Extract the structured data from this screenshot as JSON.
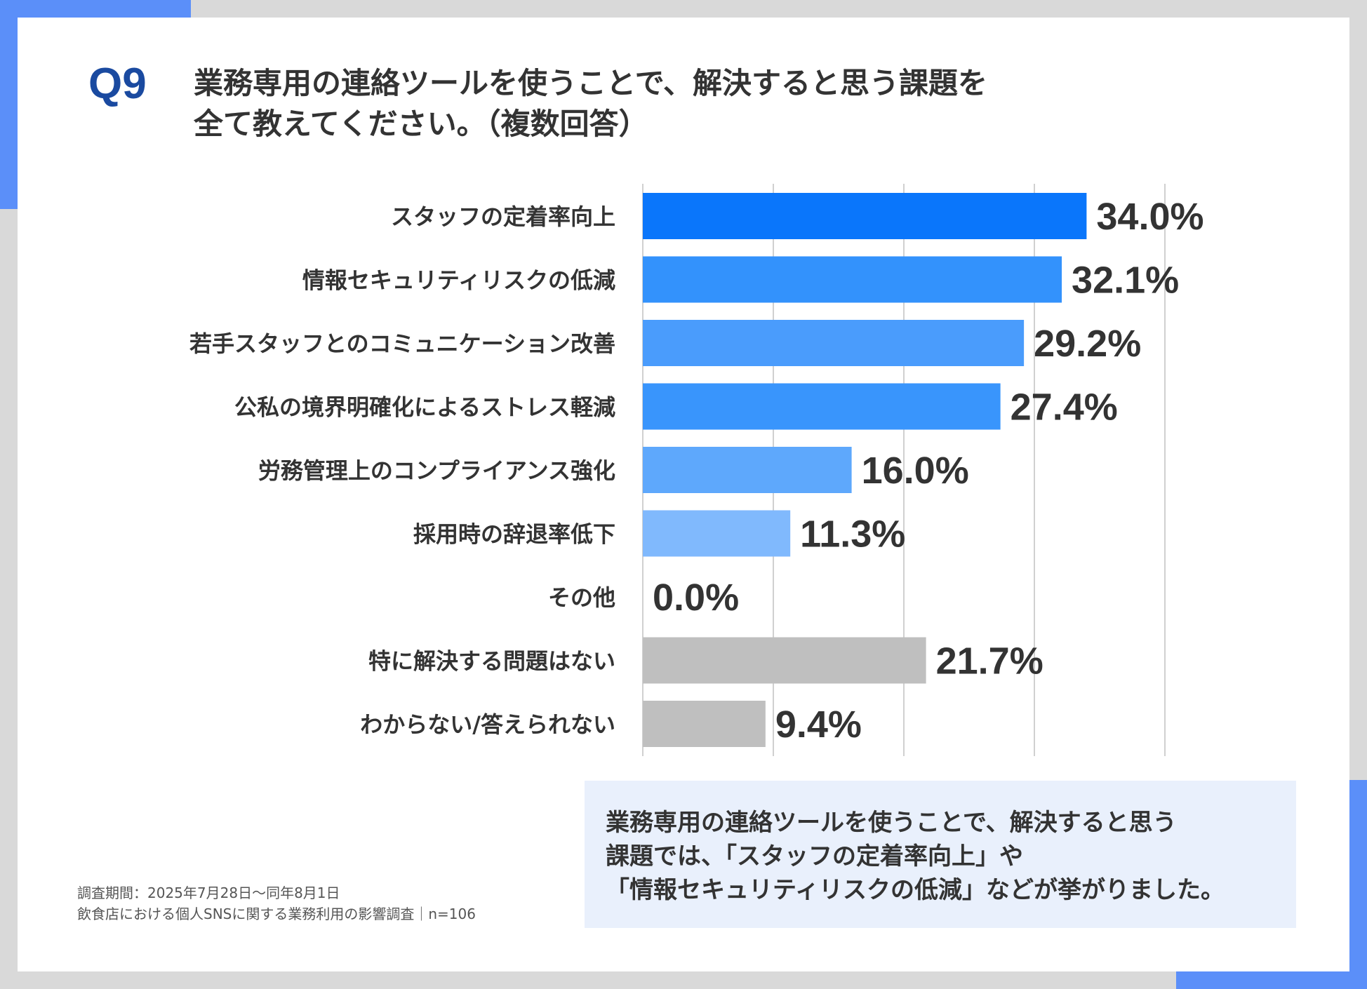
{
  "question": {
    "number": "Q9",
    "line1": "業務専用の連絡ツールを使うことで、解決すると思う課題を",
    "line2": "全て教えてください。（複数回答）"
  },
  "chart_data": {
    "type": "bar",
    "orientation": "horizontal",
    "categories": [
      "スタッフの定着率向上",
      "情報セキュリティリスクの低減",
      "若手スタッフとのコミュニケーション改善",
      "公私の境界明確化によるストレス軽減",
      "労務管理上のコンプライアンス強化",
      "採用時の辞退率低下",
      "その他",
      "特に解決する問題はない",
      "わからない/答えられない"
    ],
    "values": [
      34.0,
      32.1,
      29.2,
      27.4,
      16.0,
      11.3,
      0.0,
      21.7,
      9.4
    ],
    "value_labels": [
      "34.0%",
      "32.1%",
      "29.2%",
      "27.4%",
      "16.0%",
      "11.3%",
      "0.0%",
      "21.7%",
      "9.4%"
    ],
    "colors": [
      "#0a76fb",
      "#3392fc",
      "#4a9cfc",
      "#3995fc",
      "#5ea8fc",
      "#80b9fd",
      "#80b9fd",
      "#bfbfbf",
      "#bfbfbf"
    ],
    "xlim": [
      0,
      40
    ],
    "grid": true,
    "gridline_values": [
      0,
      10,
      20,
      30,
      40
    ],
    "legend": "none"
  },
  "footnote": {
    "line1": "調査期間：2025年7月28日～同年8月1日",
    "line2": "飲食店における個人SNSに関する業務利用の影響調査｜n=106"
  },
  "summary": {
    "line1": "業務専用の連絡ツールを使うことで、解決すると思う",
    "line2": "課題では、「スタッフの定着率向上」や",
    "line3": "「情報セキュリティリスクの低減」などが挙がりました。"
  },
  "colors": {
    "accent": "#5b8ff9",
    "question_number": "#1a4aa0",
    "summary_background": "#e9f0fc"
  }
}
